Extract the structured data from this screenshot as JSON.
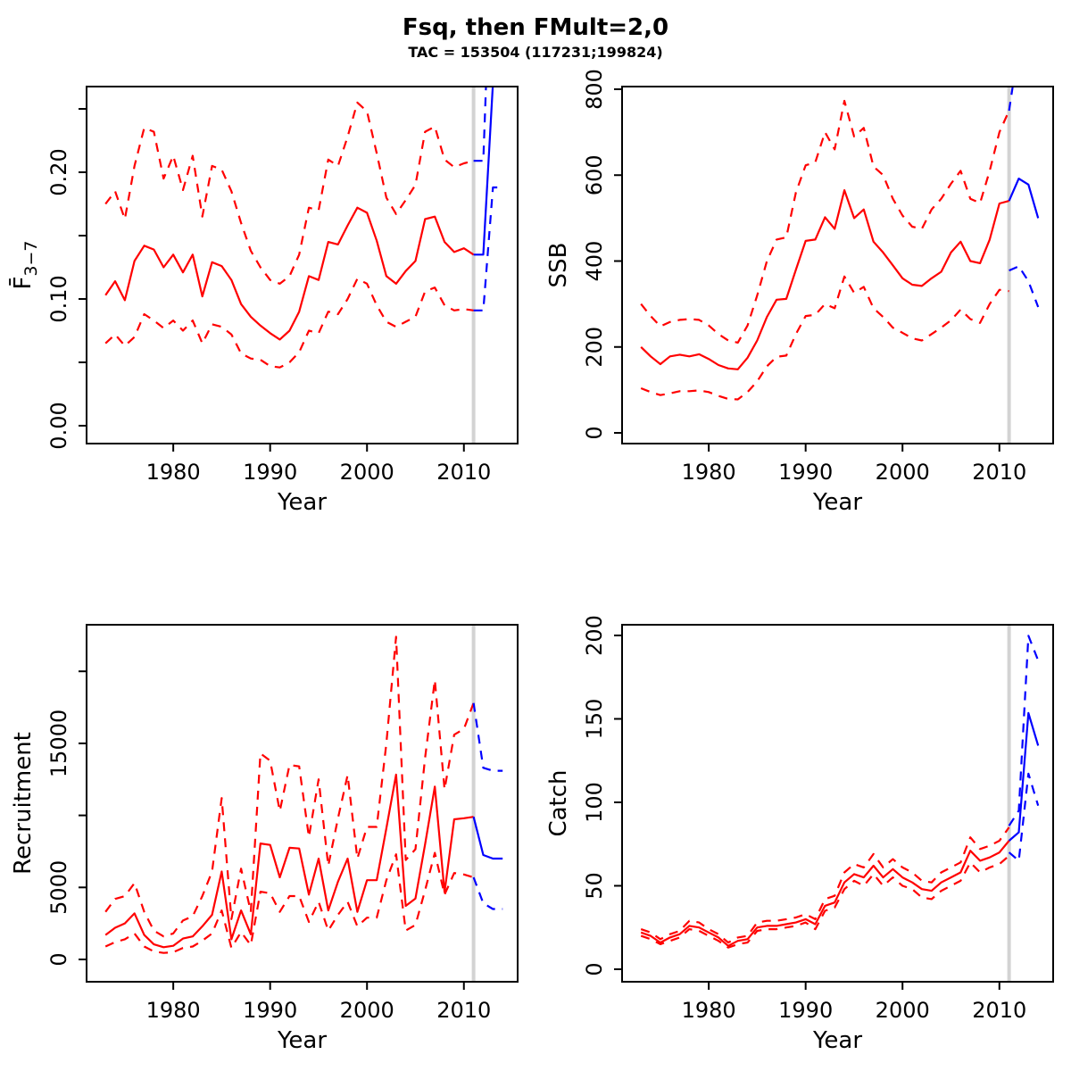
{
  "header": {
    "title": "Fsq, then FMult=2,0",
    "subtitle": "TAC = 153504 (117231;199824)"
  },
  "colors": {
    "history": "#ff0000",
    "projection": "#0000ff",
    "reference_line": "#d3d3d3",
    "axis": "#000000",
    "background": "#ffffff"
  },
  "chart_data": {
    "type": "line",
    "layout": {
      "rows": 2,
      "cols": 2,
      "grid": false,
      "legend": "none"
    },
    "xlabel": "Year",
    "xlim": [
      1971.05,
      2015.55
    ],
    "xticks": [
      1980,
      1990,
      2000,
      2010
    ],
    "vline_year": 2011,
    "years_history": [
      1973,
      1974,
      1975,
      1976,
      1977,
      1978,
      1979,
      1980,
      1981,
      1982,
      1983,
      1984,
      1985,
      1986,
      1987,
      1988,
      1989,
      1990,
      1991,
      1992,
      1993,
      1994,
      1995,
      1996,
      1997,
      1998,
      1999,
      2000,
      2001,
      2002,
      2003,
      2004,
      2005,
      2006,
      2007,
      2008,
      2009,
      2010,
      2011
    ],
    "years_projection": [
      2011,
      2012,
      2013,
      2014
    ],
    "panels": [
      {
        "id": "fbar",
        "ylabel": "F̄",
        "ylabel_sub": "3−7",
        "ylim": [
          -0.0141,
          0.2676
        ],
        "ytick_values": [
          0,
          0.05,
          0.1,
          0.15,
          0.2,
          0.25
        ],
        "ytick_labels": [
          "0.00",
          "",
          "0.10",
          "",
          "0.20",
          ""
        ],
        "median_history": [
          0.103,
          0.114,
          0.099,
          0.13,
          0.142,
          0.139,
          0.125,
          0.135,
          0.121,
          0.135,
          0.102,
          0.129,
          0.126,
          0.115,
          0.096,
          0.086,
          0.079,
          0.073,
          0.068,
          0.075,
          0.09,
          0.118,
          0.115,
          0.145,
          0.143,
          0.158,
          0.172,
          0.168,
          0.146,
          0.118,
          0.112,
          0.122,
          0.13,
          0.163,
          0.165,
          0.145,
          0.137,
          0.14,
          0.135
        ],
        "upper_history": [
          0.175,
          0.185,
          0.163,
          0.205,
          0.235,
          0.232,
          0.195,
          0.213,
          0.186,
          0.213,
          0.165,
          0.205,
          0.202,
          0.185,
          0.16,
          0.138,
          0.125,
          0.115,
          0.112,
          0.118,
          0.135,
          0.172,
          0.17,
          0.21,
          0.205,
          0.228,
          0.255,
          0.248,
          0.215,
          0.18,
          0.167,
          0.178,
          0.19,
          0.232,
          0.236,
          0.21,
          0.204,
          0.207,
          0.209
        ],
        "lower_history": [
          0.065,
          0.072,
          0.063,
          0.07,
          0.088,
          0.083,
          0.077,
          0.083,
          0.075,
          0.083,
          0.065,
          0.08,
          0.078,
          0.072,
          0.057,
          0.053,
          0.052,
          0.047,
          0.046,
          0.05,
          0.058,
          0.075,
          0.073,
          0.09,
          0.088,
          0.1,
          0.116,
          0.112,
          0.095,
          0.082,
          0.078,
          0.082,
          0.086,
          0.106,
          0.109,
          0.095,
          0.091,
          0.092,
          0.091
        ],
        "median_projection": [
          0.135,
          0.135,
          0.27,
          0.27
        ],
        "upper_projection": [
          0.209,
          0.209,
          0.42,
          0.42
        ],
        "lower_projection": [
          0.091,
          0.091,
          0.188,
          0.188
        ]
      },
      {
        "id": "ssb",
        "ylabel": "SSB",
        "ylabel_sub": "",
        "ylim": [
          -24.9,
          806.2
        ],
        "ytick_values": [
          0,
          200,
          400,
          600,
          800
        ],
        "ytick_labels": [
          "0",
          "200",
          "400",
          "600",
          "800"
        ],
        "median_history": [
          200,
          178,
          160,
          178,
          182,
          178,
          183,
          172,
          158,
          150,
          148,
          175,
          215,
          270,
          310,
          312,
          380,
          447,
          450,
          502,
          475,
          565,
          500,
          520,
          445,
          420,
          390,
          360,
          345,
          342,
          360,
          375,
          420,
          445,
          400,
          395,
          450,
          534,
          540
        ],
        "upper_history": [
          300,
          272,
          248,
          258,
          263,
          265,
          263,
          250,
          230,
          215,
          210,
          250,
          320,
          400,
          450,
          455,
          560,
          623,
          630,
          700,
          660,
          773,
          690,
          710,
          620,
          600,
          545,
          506,
          480,
          475,
          520,
          545,
          580,
          610,
          545,
          535,
          610,
          700,
          750
        ],
        "lower_history": [
          104,
          95,
          88,
          92,
          97,
          97,
          99,
          95,
          86,
          79,
          78,
          95,
          120,
          155,
          177,
          180,
          230,
          272,
          275,
          300,
          290,
          364,
          326,
          340,
          290,
          270,
          245,
          233,
          220,
          215,
          230,
          245,
          262,
          287,
          265,
          256,
          300,
          333,
          330
        ],
        "median_projection": [
          540,
          592,
          578,
          500
        ],
        "upper_projection": [
          750,
          900,
          950,
          850
        ],
        "lower_projection": [
          378,
          388,
          353,
          293
        ]
      },
      {
        "id": "recruitment",
        "ylabel": "Recruitment",
        "ylabel_sub": "",
        "ylim": [
          -1549,
          23234
        ],
        "ytick_values": [
          0,
          5000,
          10000,
          15000,
          20000
        ],
        "ytick_labels": [
          "0",
          "5000",
          "",
          "15000",
          ""
        ],
        "median_history": [
          1700,
          2200,
          2500,
          3200,
          1700,
          1050,
          850,
          950,
          1450,
          1600,
          2300,
          3100,
          6100,
          1400,
          3400,
          1750,
          8050,
          7950,
          5700,
          7750,
          7700,
          4500,
          7000,
          3400,
          5400,
          7000,
          3300,
          5500,
          5500,
          9100,
          12830,
          3720,
          4230,
          8000,
          12000,
          4670,
          9730,
          9800,
          9900
        ],
        "upper_history": [
          3300,
          4200,
          4400,
          5300,
          3300,
          2000,
          1600,
          1800,
          2700,
          3000,
          4400,
          6100,
          11200,
          2800,
          6300,
          3300,
          14300,
          13800,
          10300,
          13500,
          13400,
          8500,
          12500,
          6500,
          9800,
          12800,
          7000,
          9200,
          9200,
          15000,
          22400,
          6900,
          7650,
          14000,
          19400,
          11800,
          15600,
          16000,
          17800
        ],
        "lower_history": [
          900,
          1200,
          1400,
          1800,
          900,
          550,
          450,
          500,
          800,
          900,
          1300,
          1800,
          3400,
          800,
          1900,
          1000,
          4700,
          4600,
          3300,
          4400,
          4400,
          2600,
          4000,
          2000,
          3100,
          4000,
          2300,
          2900,
          2900,
          5500,
          7300,
          2000,
          2400,
          4800,
          7400,
          4500,
          6000,
          5900,
          5700
        ],
        "median_projection": [
          9900,
          7250,
          7000,
          7000
        ],
        "upper_projection": [
          17800,
          13300,
          13100,
          13100
        ],
        "lower_projection": [
          5700,
          3900,
          3500,
          3500
        ]
      },
      {
        "id": "catch",
        "ylabel": "Catch",
        "ylabel_sub": "",
        "ylim": [
          -7.5,
          206.4
        ],
        "ytick_values": [
          0,
          50,
          100,
          150,
          200
        ],
        "ytick_labels": [
          "0",
          "50",
          "100",
          "150",
          "200"
        ],
        "median_history": [
          22,
          20,
          16,
          19,
          21,
          26,
          25,
          22,
          19,
          14,
          17,
          18,
          25,
          26,
          26,
          27,
          28,
          30,
          27,
          38,
          40,
          52,
          57,
          55,
          62,
          55,
          60,
          55,
          52,
          48,
          47,
          52,
          55,
          58,
          71,
          65,
          67,
          70,
          77
        ],
        "upper_history": [
          24,
          22,
          18,
          21,
          23,
          29,
          28,
          24,
          21,
          16,
          19,
          20,
          28,
          29,
          29,
          30,
          31,
          33,
          30,
          42,
          44,
          58,
          63,
          61,
          69,
          61,
          66,
          61,
          58,
          53,
          52,
          58,
          61,
          64,
          79,
          72,
          74,
          77,
          85
        ],
        "lower_history": [
          20,
          18,
          15,
          17,
          19,
          24,
          23,
          20,
          17,
          13,
          15,
          16,
          23,
          24,
          24,
          25,
          26,
          28,
          24,
          35,
          37,
          48,
          53,
          50,
          57,
          50,
          55,
          50,
          48,
          43,
          42,
          47,
          50,
          53,
          64,
          58,
          61,
          63,
          68
        ],
        "median_projection": [
          77,
          82,
          153.5,
          134
        ],
        "upper_projection": [
          86,
          95,
          199.8,
          185
        ],
        "lower_projection": [
          70,
          65,
          117.2,
          98
        ]
      }
    ]
  }
}
